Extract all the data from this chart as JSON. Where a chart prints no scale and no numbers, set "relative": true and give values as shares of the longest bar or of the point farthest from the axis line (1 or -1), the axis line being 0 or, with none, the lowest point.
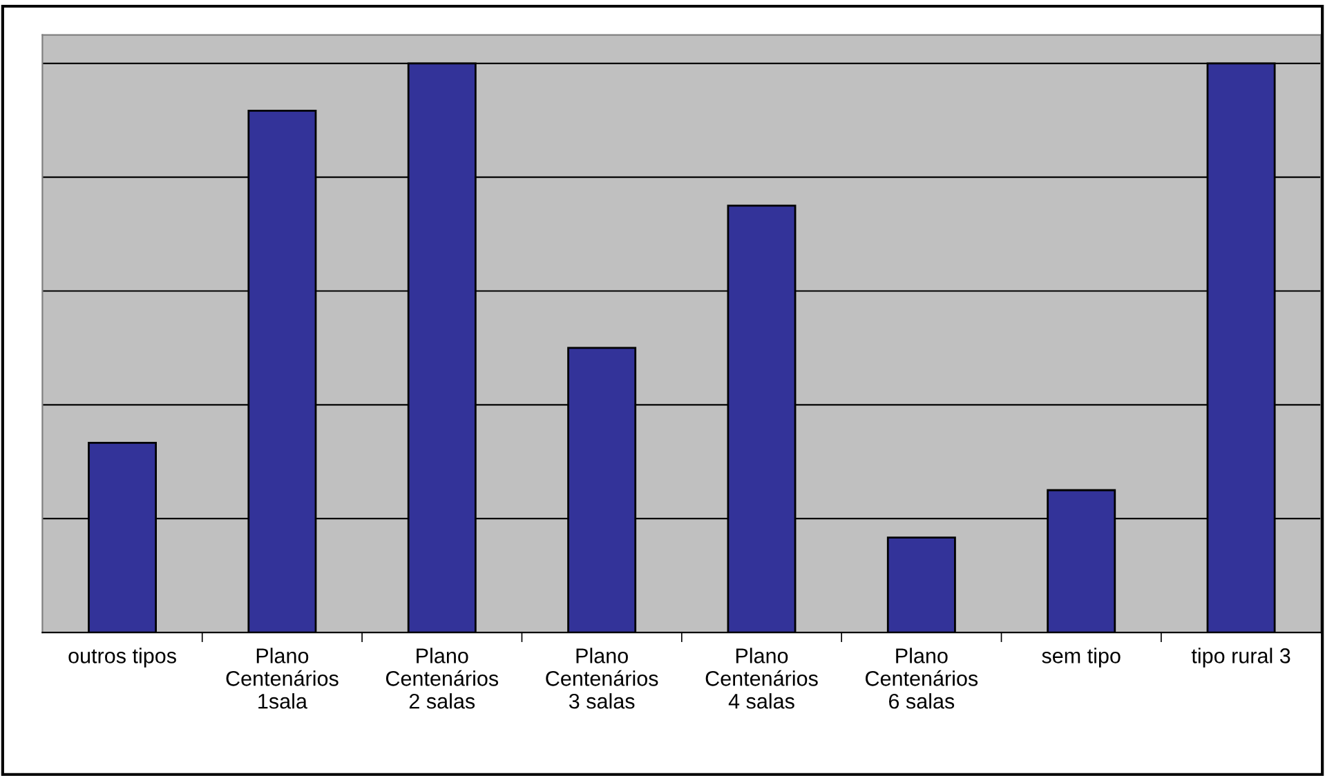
{
  "chart_data": {
    "type": "bar",
    "relative": true,
    "categories": [
      "outros tipos",
      "Plano\nCentenários\n1sala",
      "Plano\nCentenários\n2 salas",
      "Plano\nCentenários\n3 salas",
      "Plano\nCentenários\n4 salas",
      "Plano\nCentenários\n6 salas",
      "sem tipo",
      "tipo rural 3"
    ],
    "values": [
      0.3333,
      0.9167,
      1,
      0.5,
      0.75,
      0.1667,
      0.25,
      1
    ],
    "color": "#333399",
    "grid": "y",
    "legend": false
  }
}
